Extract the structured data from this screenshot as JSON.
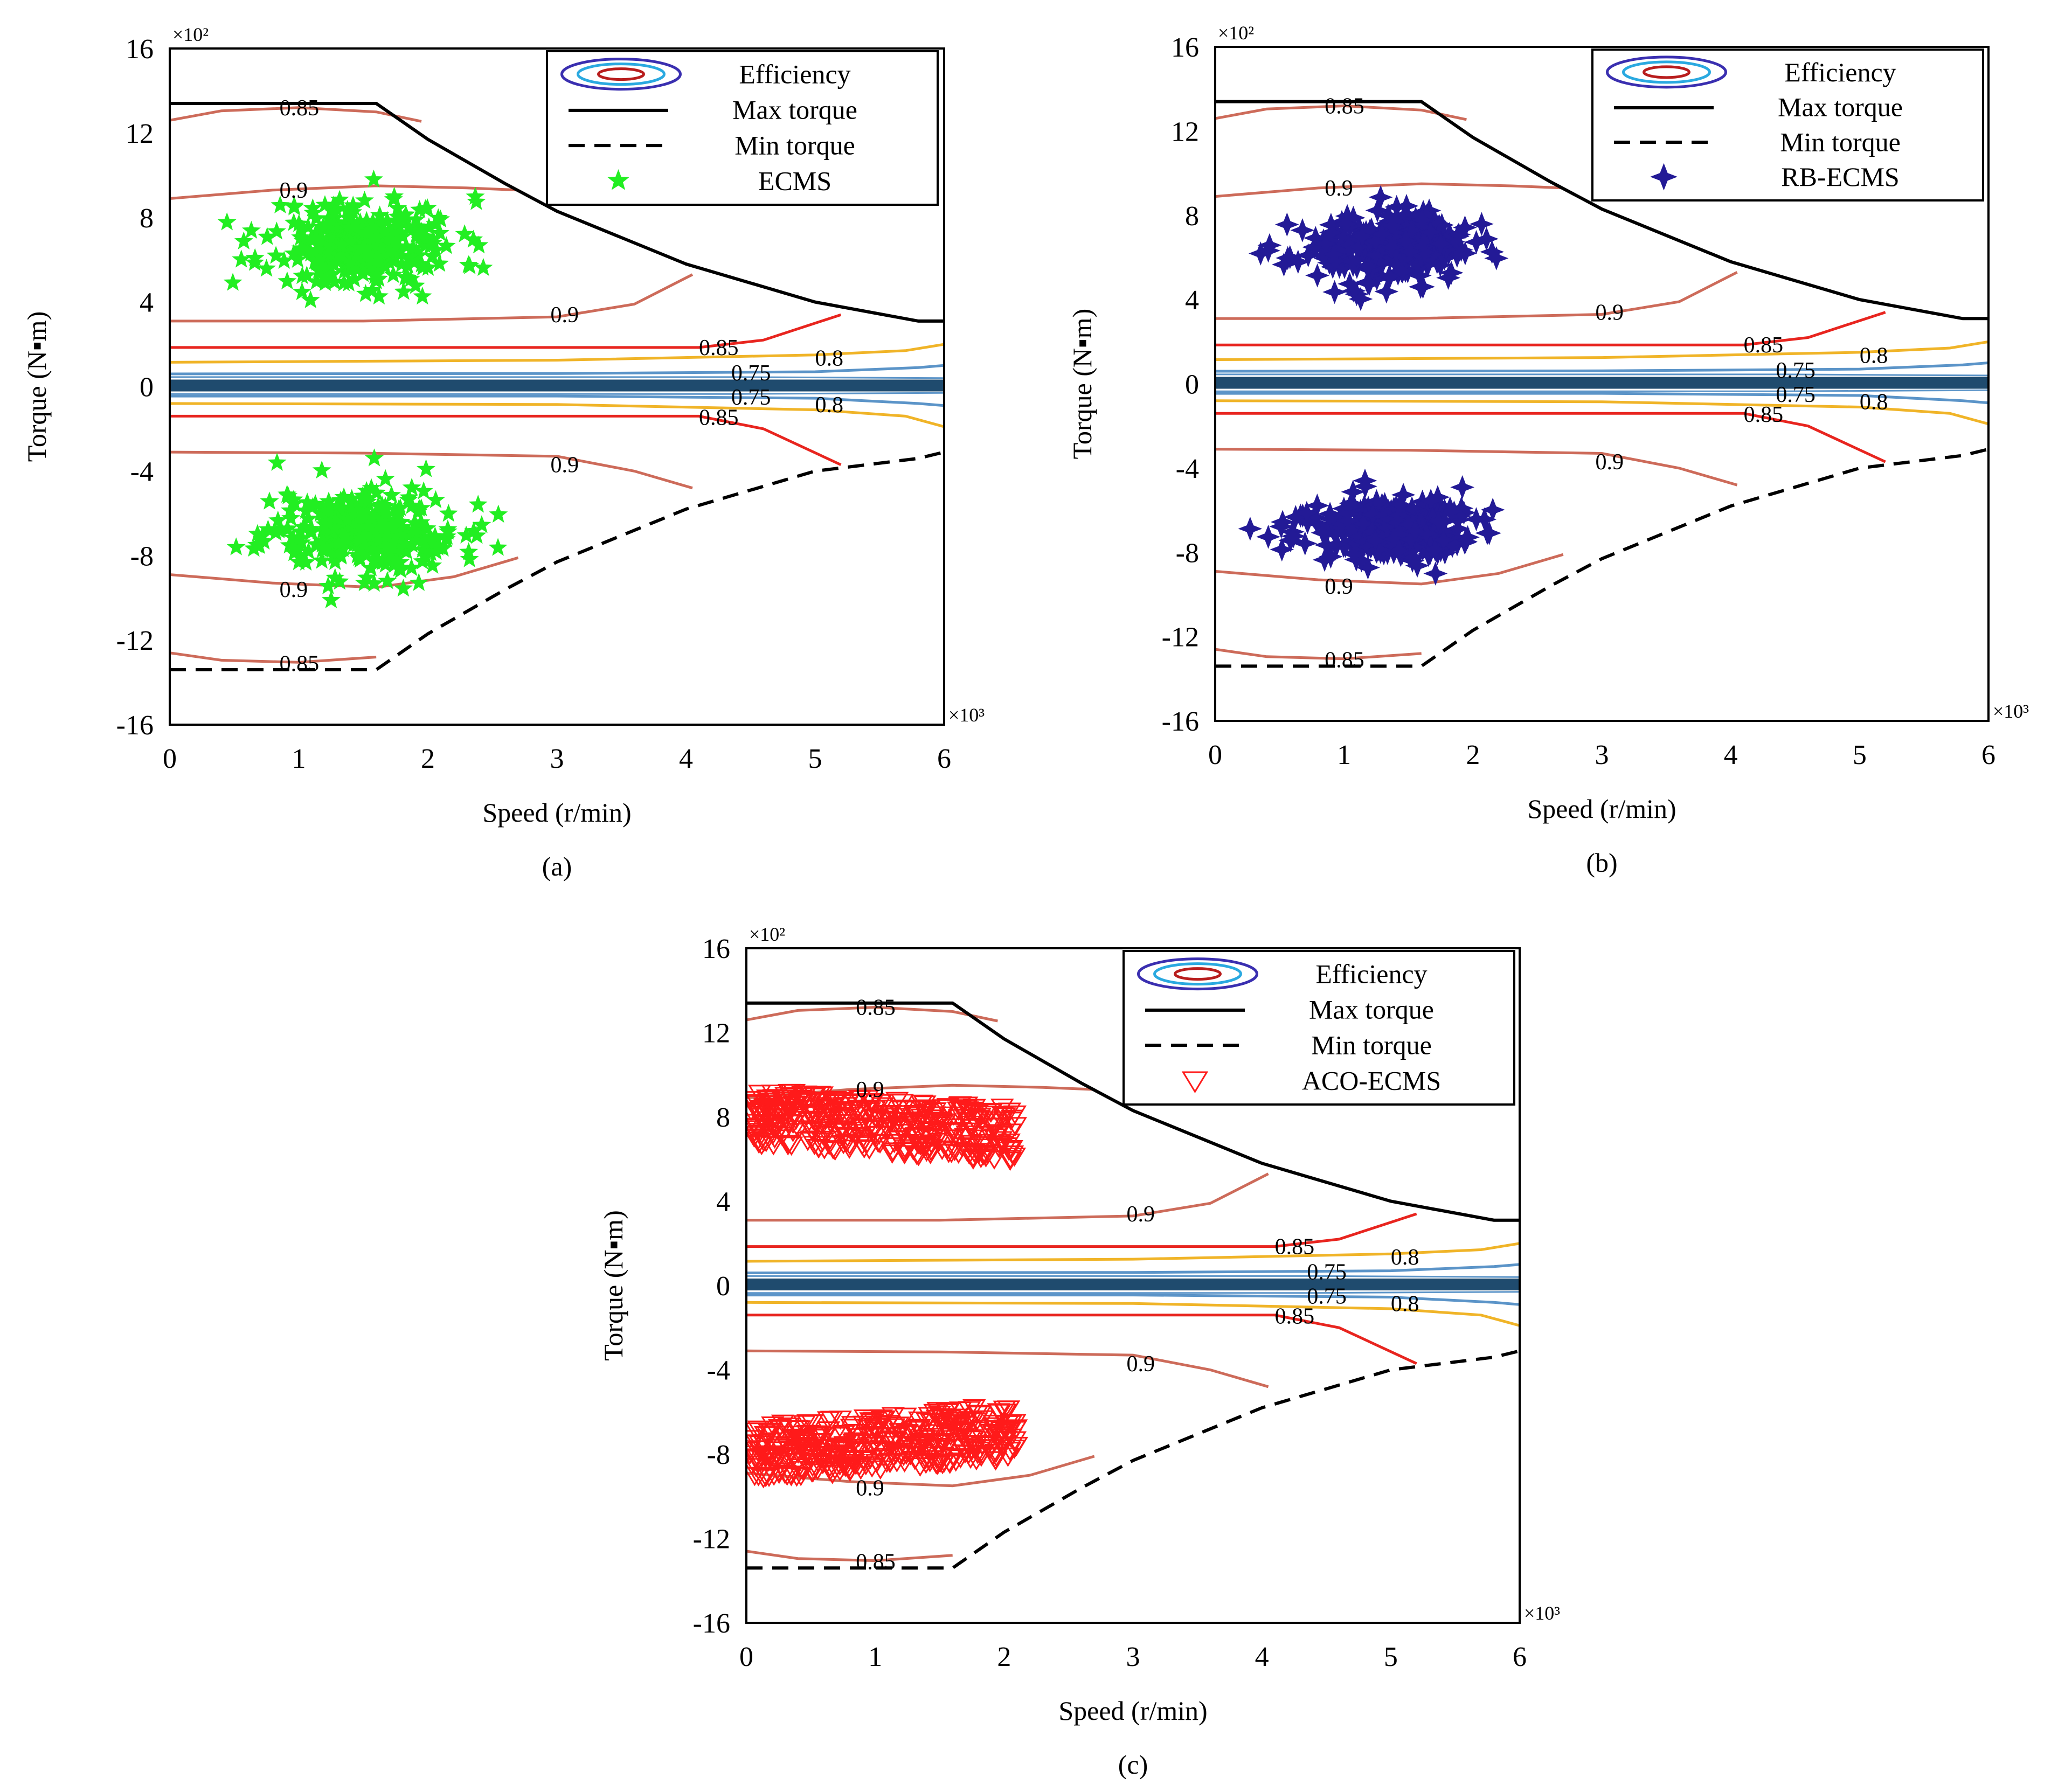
{
  "figure": {
    "common": {
      "type": "scatter",
      "xlabel": "Speed (r/min)",
      "ylabel": "Torque (N▪m)",
      "xlim": [
        0,
        6
      ],
      "ylim": [
        -16,
        16
      ],
      "xticks": [
        "0",
        "1",
        "2",
        "3",
        "4",
        "5",
        "6"
      ],
      "yticks": [
        "16",
        "12",
        "8",
        "4",
        "0",
        "-4",
        "-8",
        "-12",
        "-16"
      ],
      "x_multiplier": "×10³",
      "y_multiplier": "×10²",
      "legend_labels": [
        "Efficiency",
        "Max torque",
        "Min torque"
      ],
      "colors": {
        "max_torque": "#000000",
        "contour_090": "#cd6b5a",
        "contour_085": "#e8251f",
        "contour_080": "#f0b428",
        "contour_075": "#5b94c8",
        "zero_band": "#1f4b6e",
        "ecms": "#22ee22",
        "rb_ecms": "#231a96",
        "aco_ecms": "#ff1a1a"
      }
    }
  },
  "chart_data": [
    {
      "type": "scatter",
      "caption": "(a)",
      "title": "",
      "xlabel": "Speed (r/min)",
      "ylabel": "Torque (N▪m)",
      "xlim": [
        0,
        6
      ],
      "ylim": [
        -16,
        16
      ],
      "x_units": "×10³ r/min",
      "y_units": "×10² N·m",
      "legend": [
        "Efficiency",
        "Max torque",
        "Min torque",
        "ECMS"
      ],
      "legend_position": "top-right",
      "max_torque_curve": {
        "x": [
          0,
          1.6,
          2,
          2.6,
          3,
          4,
          5,
          5.8,
          6
        ],
        "y": [
          13.4,
          13.4,
          11.7,
          9.6,
          8.3,
          5.8,
          4.0,
          3.1,
          3.1
        ]
      },
      "min_torque_curve": {
        "x": [
          0,
          1.6,
          2,
          2.6,
          3,
          4,
          5,
          5.8,
          6
        ],
        "y": [
          -13.4,
          -13.4,
          -11.7,
          -9.6,
          -8.3,
          -5.8,
          -4.0,
          -3.4,
          -3.1
        ]
      },
      "contour_labels": [
        "0.85",
        "0.9",
        "0.9",
        "0.85",
        "0.8",
        "0.75",
        "0.75",
        "0.8",
        "0.85",
        "0.9",
        "0.9",
        "0.85"
      ],
      "series": [
        {
          "name": "ECMS",
          "marker": "star",
          "color": "#22ee22",
          "clusters": [
            {
              "cx": 1.5,
              "cy": 6.8,
              "sx": 0.75,
              "sy": 2.2,
              "n": 260
            },
            {
              "cx": 1.5,
              "cy": -6.8,
              "sx": 0.75,
              "sy": 2.2,
              "n": 260
            },
            {
              "cx": 1.5,
              "cy": 6.5,
              "sx": 0.25,
              "sy": 0.9,
              "n": 130
            },
            {
              "cx": 1.5,
              "cy": -6.9,
              "sx": 0.25,
              "sy": 0.9,
              "n": 130
            }
          ]
        }
      ]
    },
    {
      "type": "scatter",
      "caption": "(b)",
      "title": "",
      "xlabel": "Speed (r/min)",
      "ylabel": "Torque (N▪m)",
      "xlim": [
        0,
        6
      ],
      "ylim": [
        -16,
        16
      ],
      "x_units": "×10³ r/min",
      "y_units": "×10² N·m",
      "legend": [
        "Efficiency",
        "Max torque",
        "Min torque",
        "RB-ECMS"
      ],
      "legend_position": "top-right",
      "max_torque_curve": {
        "x": [
          0,
          1.6,
          2,
          2.6,
          3,
          4,
          5,
          5.8,
          6
        ],
        "y": [
          13.4,
          13.4,
          11.7,
          9.6,
          8.3,
          5.8,
          4.0,
          3.1,
          3.1
        ]
      },
      "min_torque_curve": {
        "x": [
          0,
          1.6,
          2,
          2.6,
          3,
          4,
          5,
          5.8,
          6
        ],
        "y": [
          -13.4,
          -13.4,
          -11.7,
          -9.6,
          -8.3,
          -5.8,
          -4.0,
          -3.4,
          -3.1
        ]
      },
      "contour_labels": [
        "0.85",
        "0.9",
        "0.9",
        "0.85",
        "0.8",
        "0.75",
        "0.75",
        "0.8",
        "0.85",
        "0.9",
        "0.9",
        "0.85"
      ],
      "series": [
        {
          "name": "RB-ECMS",
          "marker": "four-point-star",
          "color": "#231a96",
          "clusters": [
            {
              "cx": 1.3,
              "cy": 6.4,
              "sx": 0.7,
              "sy": 1.6,
              "n": 220
            },
            {
              "cx": 1.3,
              "cy": -6.8,
              "sx": 0.7,
              "sy": 1.6,
              "n": 220
            },
            {
              "cx": 1.5,
              "cy": 6.8,
              "sx": 0.3,
              "sy": 0.9,
              "n": 150
            },
            {
              "cx": 1.5,
              "cy": -7.2,
              "sx": 0.3,
              "sy": 0.9,
              "n": 150
            }
          ]
        }
      ]
    },
    {
      "type": "scatter",
      "caption": "(c)",
      "title": "",
      "xlabel": "Speed (r/min)",
      "ylabel": "Torque (N▪m)",
      "xlim": [
        0,
        6
      ],
      "ylim": [
        -16,
        16
      ],
      "x_units": "×10³ r/min",
      "y_units": "×10² N·m",
      "legend": [
        "Efficiency",
        "Max torque",
        "Min torque",
        "ACO-ECMS"
      ],
      "legend_position": "top-right",
      "max_torque_curve": {
        "x": [
          0,
          1.6,
          2,
          2.6,
          3,
          4,
          5,
          5.8,
          6
        ],
        "y": [
          13.4,
          13.4,
          11.7,
          9.6,
          8.3,
          5.8,
          4.0,
          3.1,
          3.1
        ]
      },
      "min_torque_curve": {
        "x": [
          0,
          1.6,
          2,
          2.6,
          3,
          4,
          5,
          5.8,
          6
        ],
        "y": [
          -13.4,
          -13.4,
          -11.7,
          -9.6,
          -8.3,
          -5.8,
          -4.0,
          -3.4,
          -3.1
        ]
      },
      "contour_labels": [
        "0.85",
        "0.9",
        "0.9",
        "0.85",
        "0.8",
        "0.75",
        "0.75",
        "0.8",
        "0.85",
        "0.9",
        "0.9",
        "0.85"
      ],
      "series": [
        {
          "name": "ACO-ECMS",
          "marker": "triangle-down-open",
          "color": "#ff1a1a",
          "clusters": [
            {
              "cx": 1.05,
              "cy": 7.6,
              "sx": 1.05,
              "sy": 1.3,
              "n": 380,
              "dist": "uniform-sheared",
              "slope": -0.7
            },
            {
              "cx": 1.05,
              "cy": -7.4,
              "sx": 1.05,
              "sy": 1.3,
              "n": 380,
              "dist": "uniform-sheared",
              "slope": 0.85
            }
          ]
        }
      ]
    }
  ]
}
